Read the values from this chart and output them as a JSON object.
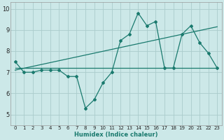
{
  "background_color": "#cce8e8",
  "grid_color": "#aacccc",
  "line_color": "#1a7a6e",
  "xlabel": "Humidex (Indice chaleur)",
  "xlim": [
    -0.5,
    23.5
  ],
  "ylim": [
    4.5,
    10.3
  ],
  "yticks": [
    5,
    6,
    7,
    8,
    9,
    10
  ],
  "xticks": [
    0,
    1,
    2,
    3,
    4,
    5,
    6,
    7,
    8,
    9,
    10,
    11,
    12,
    13,
    14,
    15,
    16,
    17,
    18,
    19,
    20,
    21,
    22,
    23
  ],
  "series_main": {
    "x": [
      0,
      1,
      2,
      3,
      4,
      5,
      6,
      7,
      8,
      9,
      10,
      11,
      12,
      13,
      14,
      15,
      16,
      17,
      18,
      19,
      20,
      21,
      22,
      23
    ],
    "y": [
      7.5,
      7.0,
      7.0,
      7.1,
      7.1,
      7.1,
      6.8,
      6.8,
      5.3,
      5.7,
      6.5,
      7.0,
      8.5,
      8.8,
      9.8,
      9.2,
      9.4,
      7.2,
      7.2,
      8.8,
      9.2,
      8.4,
      7.9,
      7.2
    ]
  },
  "series_flat": {
    "x": [
      0,
      23
    ],
    "y": [
      7.2,
      7.2
    ]
  },
  "series_rising": {
    "x": [
      0,
      23
    ],
    "y": [
      7.1,
      9.15
    ]
  }
}
